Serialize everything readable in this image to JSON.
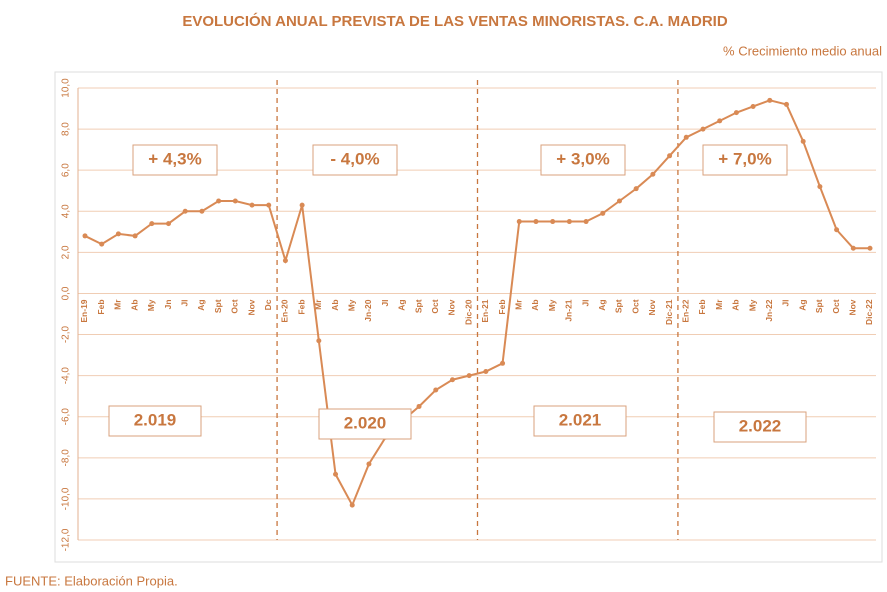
{
  "chart_data": {
    "type": "line",
    "title": "EVOLUCIÓN ANUAL PREVISTA DE LAS VENTAS MINORISTAS. C.A. MADRID",
    "subtitle": "% Crecimiento medio anual",
    "source": "FUENTE: Elaboración Propia.",
    "annotations": [
      "+ 4,3%",
      "- 4,0%",
      "+ 3,0%",
      "+ 7,0%"
    ],
    "year_labels": [
      "2.019",
      "2.020",
      "2.021",
      "2.022"
    ],
    "categories": [
      "En-19",
      "Feb",
      "Mr",
      "Ab",
      "My",
      "Jn",
      "Jl",
      "Ag",
      "Spt",
      "Oct",
      "Nov",
      "Dc",
      "En-20",
      "Feb",
      "Mr",
      "Ab",
      "My",
      "Jn-20",
      "Jl",
      "Ag",
      "Spt",
      "Oct",
      "Nov",
      "Dic-20",
      "En-21",
      "Feb",
      "Mr",
      "Ab",
      "My",
      "Jn-21",
      "Jl",
      "Ag",
      "Spt",
      "Oct",
      "Nov",
      "Dic-21",
      "En-22",
      "Feb",
      "Mr",
      "Ab",
      "My",
      "Jn-22",
      "Jl",
      "Ag",
      "Spt",
      "Oct",
      "Nov",
      "Dic-22"
    ],
    "series": [
      {
        "name": "Ventas minoristas",
        "color": "#d98a55",
        "values": [
          2.8,
          2.4,
          2.9,
          2.8,
          3.4,
          3.4,
          4.0,
          4.0,
          4.5,
          4.5,
          4.3,
          4.3,
          1.6,
          4.3,
          -2.3,
          -8.8,
          -10.3,
          -8.3,
          -7.0,
          -6.2,
          -5.5,
          -4.7,
          -4.2,
          -4.0,
          -3.8,
          -3.4,
          3.5,
          3.5,
          3.5,
          3.5,
          3.5,
          3.9,
          4.5,
          5.1,
          5.8,
          6.7,
          7.6,
          8.0,
          8.4,
          8.8,
          9.1,
          9.4,
          9.2,
          7.4,
          5.2,
          3.1,
          2.2,
          2.2
        ]
      }
    ],
    "ylim": [
      -12,
      10
    ],
    "yticks": [
      {
        "value": 10,
        "label": "10,0"
      },
      {
        "value": 8,
        "label": "8,0"
      },
      {
        "value": 6,
        "label": "6,0"
      },
      {
        "value": 4,
        "label": "4,0"
      },
      {
        "value": 2,
        "label": "2,0"
      },
      {
        "value": 0,
        "label": "0,0"
      },
      {
        "value": -2,
        "label": "-2,0"
      },
      {
        "value": -4,
        "label": "-4,0"
      },
      {
        "value": -6,
        "label": "-6,0"
      },
      {
        "value": -8,
        "label": "-8,0"
      },
      {
        "value": -10,
        "label": "-10,0"
      },
      {
        "value": -12,
        "label": "-12,0"
      }
    ],
    "grid": true
  }
}
